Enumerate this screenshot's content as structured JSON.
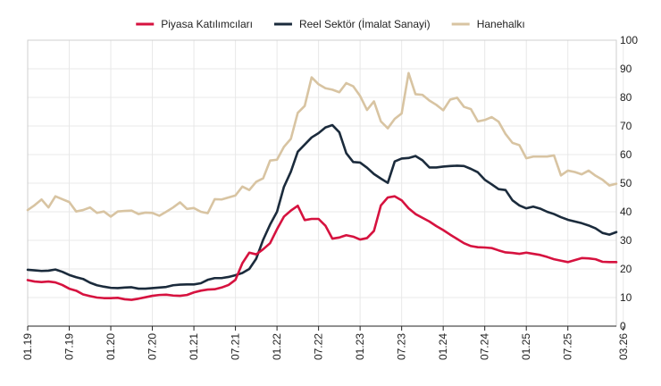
{
  "chart_data": {
    "type": "line",
    "title": "",
    "xlabel": "",
    "ylabel": "",
    "ylim": [
      0,
      100
    ],
    "y_ticks": [
      0,
      10,
      20,
      30,
      40,
      50,
      60,
      70,
      80,
      90,
      100
    ],
    "y_axis_position": "right",
    "legend_position": "top",
    "grid": true,
    "x_tick_labels": [
      "01.19",
      "07.19",
      "01.20",
      "07.20",
      "01.21",
      "07.21",
      "01.22",
      "07.22",
      "01.23",
      "07.23",
      "01.24",
      "07.24",
      "01.25",
      "07.25",
      "03.26"
    ],
    "x_tick_months": [
      0,
      6,
      12,
      18,
      24,
      30,
      36,
      42,
      48,
      54,
      60,
      66,
      72,
      78,
      86
    ],
    "x_start": "01.19",
    "x_end": "03.26",
    "series": [
      {
        "name": "Piyasa Katılımcıları",
        "color": "#d6123f",
        "values": [
          16.1,
          15.6,
          15.4,
          15.6,
          15.3,
          14.4,
          13.1,
          12.4,
          11.1,
          10.5,
          10.0,
          9.8,
          9.8,
          9.9,
          9.4,
          9.2,
          9.6,
          10.1,
          10.6,
          10.9,
          11.0,
          10.7,
          10.6,
          10.9,
          11.8,
          12.4,
          12.8,
          12.9,
          13.5,
          14.4,
          16.2,
          22.0,
          25.7,
          25.1,
          26.9,
          29.0,
          33.9,
          38.3,
          40.4,
          42.1,
          37.1,
          37.5,
          37.5,
          35.1,
          30.6,
          31.0,
          31.8,
          31.3,
          30.3,
          30.8,
          33.3,
          42.2,
          45.0,
          45.4,
          44.0,
          41.2,
          39.2,
          37.9,
          36.6,
          35.0,
          33.6,
          32.0,
          30.5,
          29.0,
          28.0,
          27.6,
          27.5,
          27.3,
          26.5,
          25.8,
          25.6,
          25.3,
          25.7,
          25.3,
          24.9,
          24.2,
          23.4,
          22.9,
          22.4,
          23.1,
          23.8,
          23.7,
          23.4,
          22.5,
          22.4,
          22.4
        ]
      },
      {
        "name": "Reel Sektör (İmalat Sanayi)",
        "color": "#1b2b3c",
        "values": [
          19.7,
          19.5,
          19.3,
          19.4,
          19.8,
          19.0,
          17.9,
          17.1,
          16.5,
          15.2,
          14.3,
          13.8,
          13.4,
          13.3,
          13.5,
          13.6,
          13.1,
          13.1,
          13.3,
          13.5,
          13.7,
          14.3,
          14.5,
          14.6,
          14.6,
          15.0,
          16.2,
          16.8,
          16.8,
          17.2,
          17.8,
          18.6,
          20.0,
          23.6,
          30.2,
          35.5,
          40.0,
          48.7,
          54.0,
          61.0,
          63.5,
          66.0,
          67.5,
          69.5,
          70.3,
          67.8,
          60.5,
          57.4,
          57.2,
          55.4,
          53.2,
          51.6,
          50.1,
          57.6,
          58.6,
          58.8,
          59.5,
          58.0,
          55.5,
          55.5,
          55.8,
          56.0,
          56.1,
          56.0,
          55.0,
          53.8,
          51.2,
          49.6,
          47.9,
          47.6,
          44.0,
          42.2,
          41.2,
          41.8,
          41.1,
          40.0,
          39.2,
          38.1,
          37.2,
          36.6,
          36.0,
          35.2,
          34.2,
          32.6,
          32.0,
          32.9
        ]
      },
      {
        "name": "Hanehalkı",
        "color": "#d8c4a2",
        "values": [
          40.6,
          42.3,
          44.3,
          41.5,
          45.4,
          44.4,
          43.4,
          40.1,
          40.6,
          41.5,
          39.6,
          40.1,
          38.3,
          40.1,
          40.3,
          40.4,
          39.2,
          39.7,
          39.6,
          38.6,
          40.0,
          41.5,
          43.3,
          41.0,
          41.3,
          40.0,
          39.5,
          44.4,
          44.3,
          45.0,
          45.7,
          48.8,
          47.6,
          50.5,
          51.7,
          57.9,
          58.2,
          62.7,
          65.5,
          74.6,
          77.0,
          87.0,
          84.6,
          83.2,
          82.7,
          81.8,
          85.0,
          83.9,
          80.5,
          75.6,
          78.6,
          71.6,
          69.2,
          72.5,
          74.4,
          88.5,
          81.1,
          80.9,
          78.9,
          77.4,
          75.5,
          79.2,
          79.9,
          76.7,
          75.9,
          71.6,
          72.1,
          73.1,
          71.5,
          67.2,
          64.1,
          63.3,
          58.7,
          59.3,
          59.3,
          59.3,
          59.7,
          52.7,
          54.4,
          53.9,
          53.1,
          54.4,
          52.6,
          51.2,
          49.2,
          49.8
        ]
      }
    ]
  }
}
